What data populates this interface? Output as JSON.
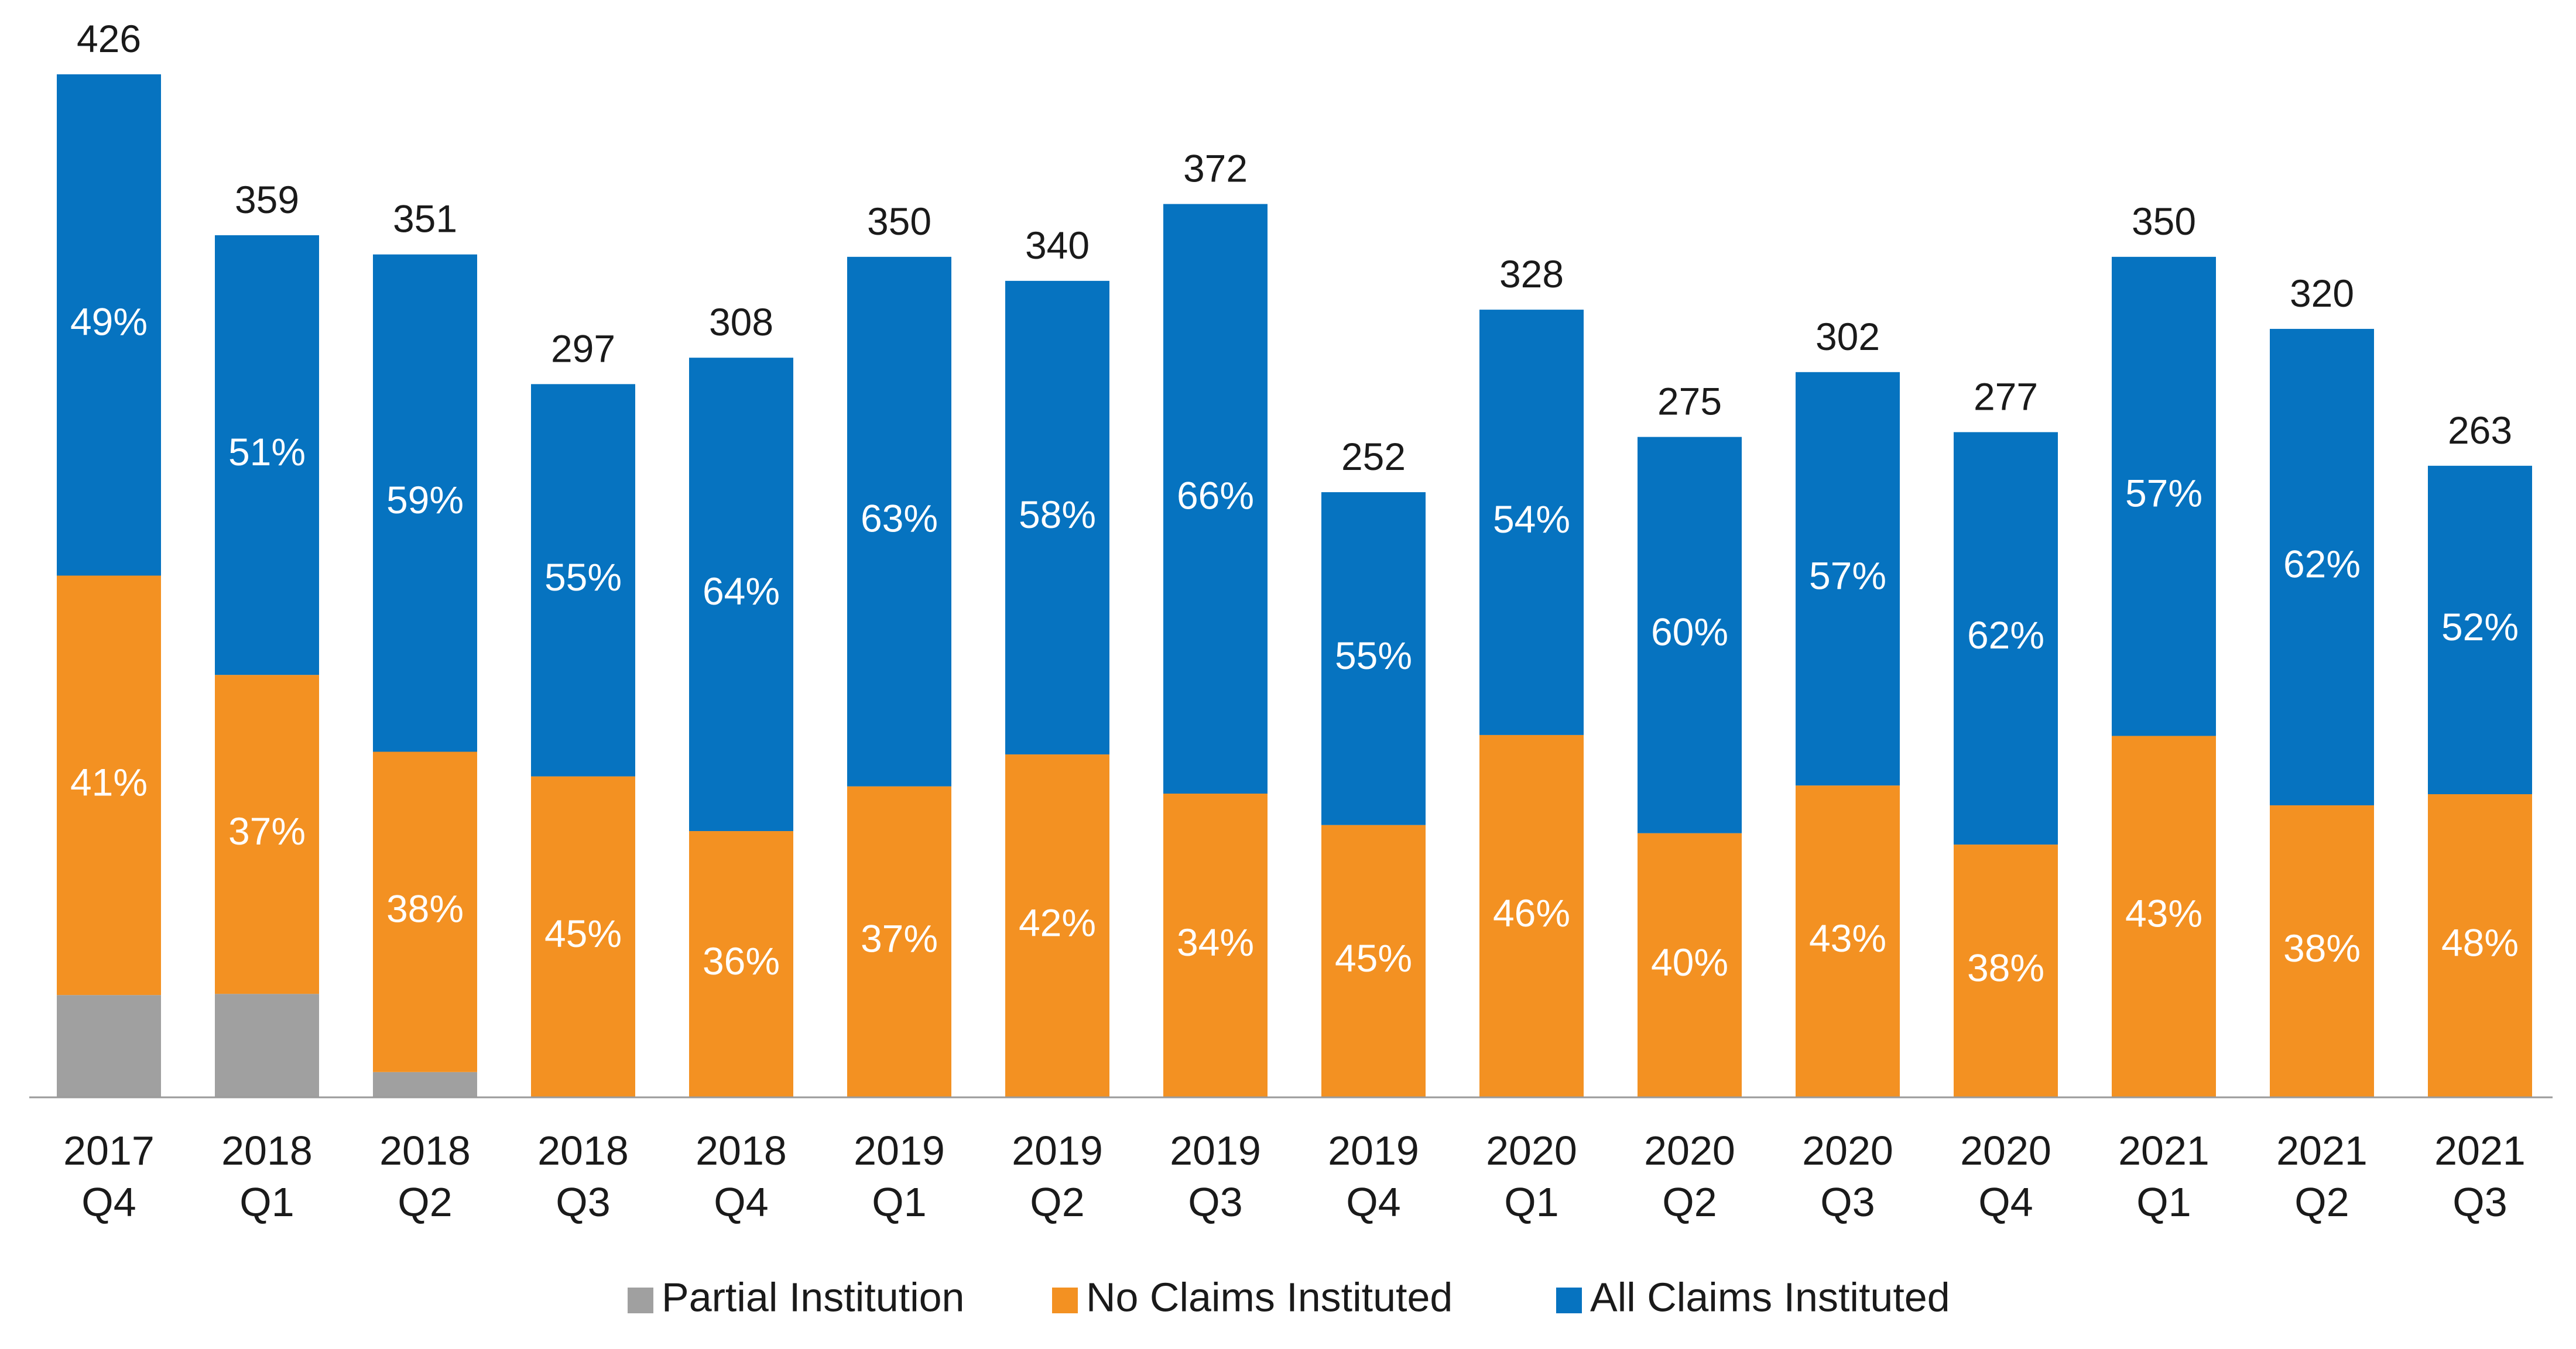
{
  "chart_data": {
    "type": "bar",
    "stacked": true,
    "categories": [
      [
        "2017",
        "Q4"
      ],
      [
        "2018",
        "Q1"
      ],
      [
        "2018",
        "Q2"
      ],
      [
        "2018",
        "Q3"
      ],
      [
        "2018",
        "Q4"
      ],
      [
        "2019",
        "Q1"
      ],
      [
        "2019",
        "Q2"
      ],
      [
        "2019",
        "Q3"
      ],
      [
        "2019",
        "Q4"
      ],
      [
        "2020",
        "Q1"
      ],
      [
        "2020",
        "Q2"
      ],
      [
        "2020",
        "Q3"
      ],
      [
        "2020",
        "Q4"
      ],
      [
        "2021",
        "Q1"
      ],
      [
        "2021",
        "Q2"
      ],
      [
        "2021",
        "Q3"
      ]
    ],
    "totals": [
      426,
      359,
      351,
      297,
      308,
      350,
      340,
      372,
      252,
      328,
      275,
      302,
      277,
      350,
      320,
      263
    ],
    "series": [
      {
        "name": "Partial Institution",
        "color": "#a0a0a0",
        "percent": [
          10,
          12,
          3,
          0,
          0,
          0,
          0,
          0,
          0,
          0,
          0,
          0,
          0,
          0,
          0,
          0
        ],
        "labels": [
          "",
          "",
          "",
          "",
          "",
          "",
          "",
          "",
          "",
          "",
          "",
          "",
          "",
          "",
          "",
          ""
        ]
      },
      {
        "name": "No Claims Instituted",
        "color": "#f39122",
        "percent": [
          41,
          37,
          38,
          45,
          36,
          37,
          42,
          34,
          45,
          46,
          40,
          43,
          38,
          43,
          38,
          48
        ],
        "labels": [
          "41%",
          "37%",
          "38%",
          "45%",
          "36%",
          "37%",
          "42%",
          "34%",
          "45%",
          "46%",
          "40%",
          "43%",
          "38%",
          "43%",
          "38%",
          "48%"
        ]
      },
      {
        "name": "All Claims Instituted",
        "color": "#0673c0",
        "percent": [
          49,
          51,
          59,
          55,
          64,
          63,
          58,
          66,
          55,
          54,
          60,
          57,
          62,
          57,
          62,
          52
        ],
        "labels": [
          "49%",
          "51%",
          "59%",
          "55%",
          "64%",
          "63%",
          "58%",
          "66%",
          "55%",
          "54%",
          "60%",
          "57%",
          "62%",
          "57%",
          "62%",
          "52%"
        ]
      }
    ],
    "ylim": [
      0,
      426
    ],
    "grid": false,
    "legend": "bottom"
  }
}
